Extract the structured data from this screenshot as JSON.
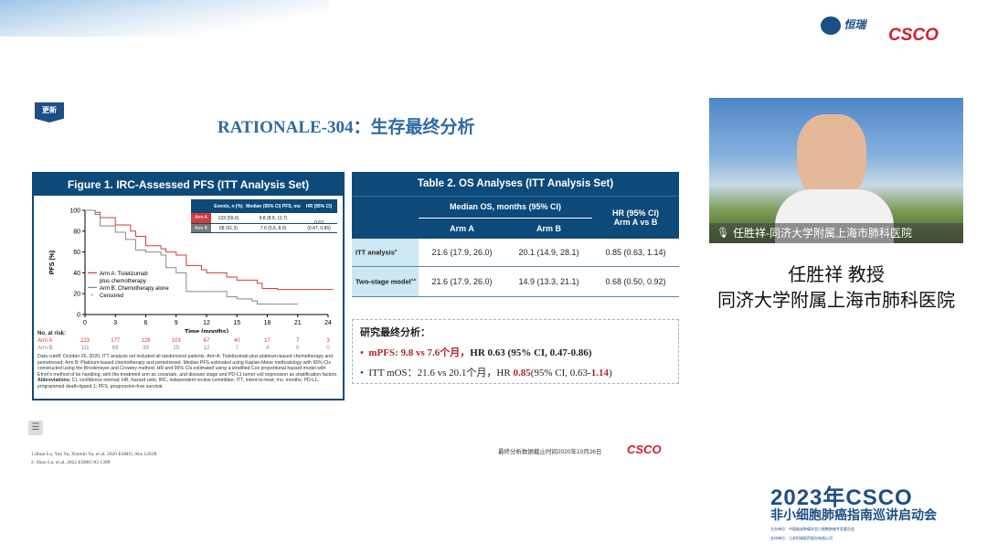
{
  "logos": {
    "top_left": "恒瑞",
    "top_right": "CSCO",
    "footer": "CSCO"
  },
  "badge": "更新",
  "slide_title": "RATIONALE-304：生存最终分析",
  "figure": {
    "title": "Figure 1. IRC-Assessed PFS (ITT Analysis Set)",
    "inset": {
      "headers": [
        "",
        "Events, n (%)",
        "Median (95% CI) PFS, mo",
        "HR (95% CI)"
      ],
      "rows": [
        {
          "arm": "Arm A",
          "events": "133 (59.6)",
          "median": "9.8 (8.9, 11.7)"
        },
        {
          "arm": "Arm B",
          "events": "68 (61.3)",
          "median": "7.6 (5.6, 8.0)"
        }
      ],
      "hr": "0.63",
      "hr_ci": "(0.47, 0.86)"
    },
    "risk": {
      "label": "No. at risk:",
      "arm_a_label": "Arm A",
      "arm_b_label": "Arm B",
      "arm_a": [
        "223",
        "177",
        "128",
        "103",
        "67",
        "40",
        "17",
        "7",
        "3"
      ],
      "arm_b": [
        "111",
        "69",
        "39",
        "25",
        "12",
        "7",
        "4",
        "0",
        "0"
      ]
    },
    "footnote_1": "Data cutoff: October 26, 2020. ITT analysis set included all randomized patients. Arm A: Tislelizumab plus platinum-based chemotherapy and pemetrexed; Arm B: Platinum-based chemotherapy and pemetrexed. Median PFS estimated using Kaplan-Meier methodology with 95% CIs constructed using the Brookmeyer and Crowley method. HR and 95% CIs estimated using a stratified Cox proportional hazard model with Efron's method of tie handling, with the treatment arm as covariate, and disease stage and PD-L1 tumor cell expression as stratification factors. ",
    "footnote_bold": "Abbreviations:",
    "footnote_2": " CI, confidence interval; HR, hazard ratio; IRC, independent review committee; ITT, intent-to-treat; mo, months; PD-L1, programmed death-ligand 1; PFS, progression-free survival."
  },
  "chart_data": {
    "type": "line",
    "xlabel": "Time (months)",
    "ylabel": "PFS (%)",
    "xlim": [
      0,
      24
    ],
    "ylim": [
      0,
      100
    ],
    "xticks": [
      "0",
      "3",
      "6",
      "9",
      "12",
      "15",
      "18",
      "21",
      "24"
    ],
    "yticks": [
      "0",
      "20",
      "40",
      "60",
      "80",
      "100"
    ],
    "legend": [
      "Arm A: Tislelizumab plus chemotherapy",
      "Arm B: Chemotherapy alone",
      "Censored"
    ],
    "legend_placement": "left",
    "series": [
      {
        "name": "Arm A: Tislelizumab plus chemotherapy",
        "color": "#d63a3a",
        "x": [
          0,
          1,
          1.5,
          3,
          4.5,
          5,
          6,
          7.5,
          8,
          9,
          10,
          11.5,
          12,
          14,
          15,
          17,
          17.5,
          19,
          24.5
        ],
        "y": [
          100,
          98,
          93,
          86,
          80,
          75,
          66,
          63,
          60,
          57,
          47,
          43,
          40,
          36,
          33,
          30,
          25,
          24,
          24
        ]
      },
      {
        "name": "Arm B: Chemotherapy alone",
        "color": "#888888",
        "x": [
          0,
          1,
          1.5,
          3,
          4,
          5,
          6,
          7.5,
          8,
          9,
          10,
          14,
          15,
          16.5,
          17,
          21
        ],
        "y": [
          100,
          96,
          85,
          79,
          72,
          62,
          60,
          57,
          45,
          40,
          22,
          17,
          15,
          13,
          10,
          10
        ]
      }
    ]
  },
  "table2": {
    "title": "Table 2. OS Analyses (ITT Analysis Set)",
    "group_header": "Median OS, months (95% CI)",
    "col_a": "Arm A",
    "col_b": "Arm B",
    "col_hr_1": "HR (95% CI)",
    "col_hr_2": "Arm A vs B",
    "rows": [
      {
        "label": "ITT analysis",
        "sup": "a",
        "a": "21.6 (17.9, 26.0)",
        "b": "20.1 (14.9, 28.1)",
        "hr": "0.85 (0.63, 1.14)"
      },
      {
        "label": "Two-stage model",
        "sup": "4,b",
        "a": "21.6 (17.9, 26.0)",
        "b": "14.9 (13.3, 21.1)",
        "hr": "0.68  (0.50, 0.92)"
      }
    ]
  },
  "summary": {
    "heading": "研究最终分析：",
    "b1_red": "mPFS: 9.8 vs 7.6个月，",
    "b1_rest": "HR 0.63 (95% CI, 0.47-0.86)",
    "b2_a": "ITT mOS：21.6 vs 20.1个月，HR ",
    "b2_red": "0.85",
    "b2_b": "(95% CI, 0.63-",
    "b2_red2": "1.14",
    "b2_c": ")"
  },
  "cutoff_note": "最终分析数据截止时间2020年10月26日",
  "references": [
    "1.Shun Lu, Yan Yu, Xinmin Yu, et al. 2020 ESMO, Abs 1263P.",
    "2. Shun Lu, et al. 2022 ESMO IO 138P."
  ],
  "speaker": {
    "caption": "任胜祥-同济大学附属上海市肺科医院",
    "name": "任胜祥  教授",
    "affiliation": "同济大学附属上海市肺科医院"
  },
  "event": {
    "year": "2023年CSCO",
    "title": "非小细胞肺癌指南巡讲启动会",
    "organizer": "主办单位：中国临床肿瘤学会小细胞肺癌专家委员会",
    "sponsor": "支持单位：江苏恒瑞医药股份有限公司"
  }
}
